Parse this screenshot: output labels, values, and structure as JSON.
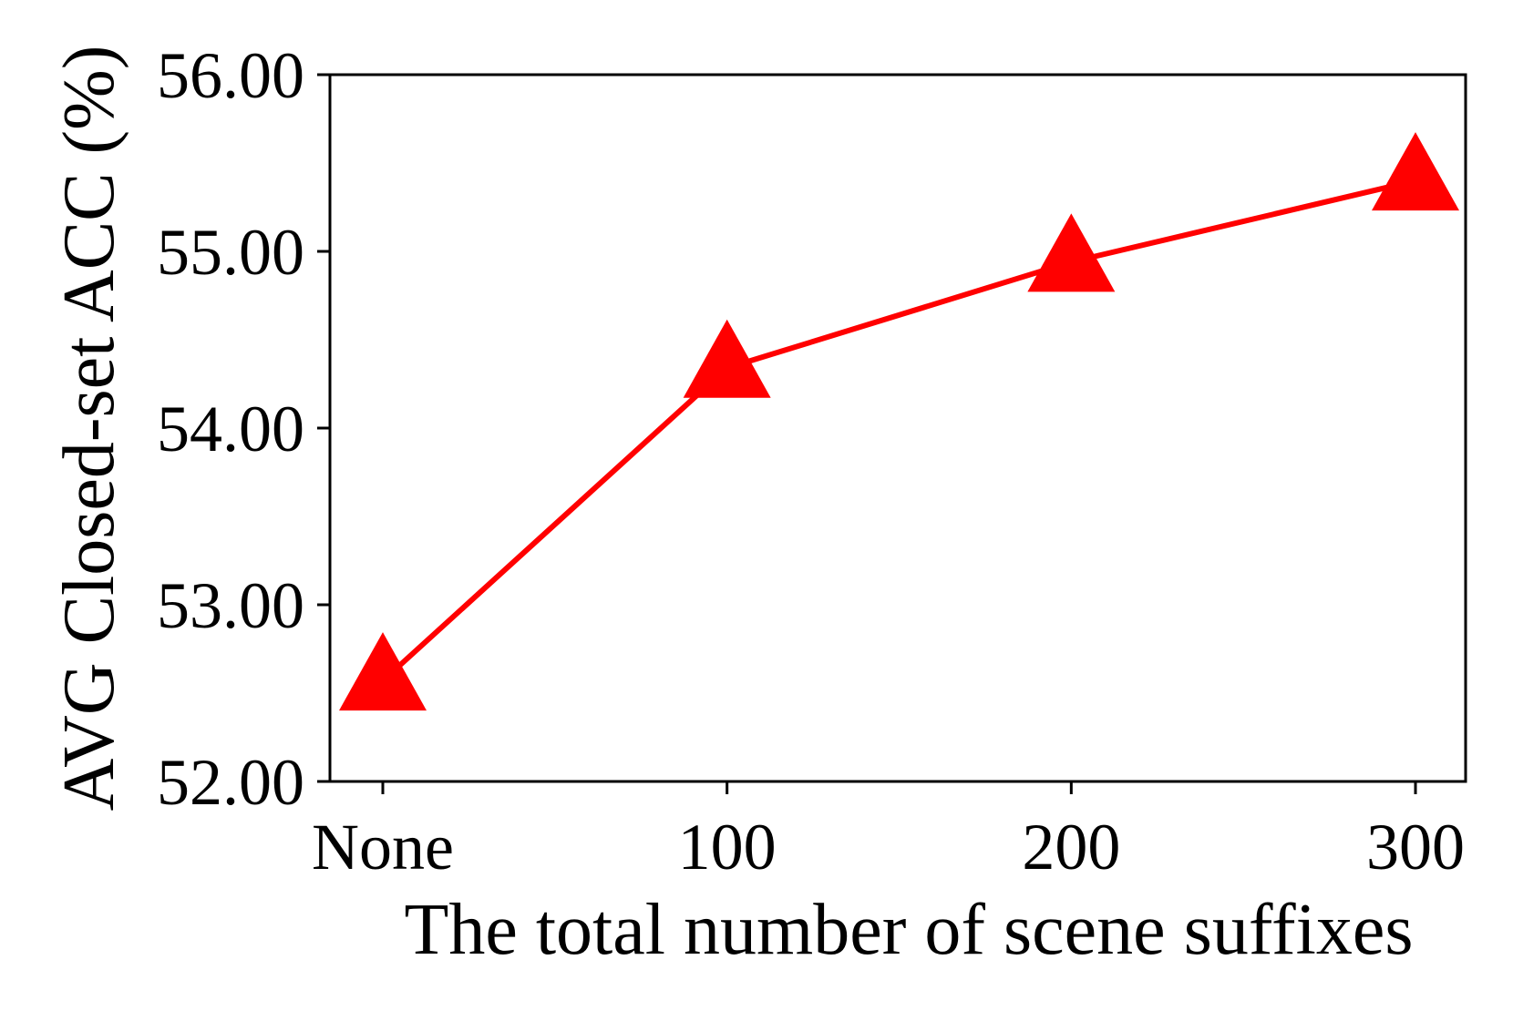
{
  "chart_data": {
    "type": "line",
    "title": "",
    "xlabel": "The total number of scene suffixes",
    "ylabel": "AVG Closed-set ACC (%)",
    "categories": [
      "None",
      "100",
      "200",
      "300"
    ],
    "series": [
      {
        "values": [
          52.57,
          54.34,
          54.94,
          55.4
        ]
      }
    ],
    "ylim": [
      52.0,
      56.0
    ],
    "yticks": [
      "52.00",
      "53.00",
      "54.00",
      "55.00",
      "56.00"
    ],
    "grid": false,
    "legend": "none",
    "line_color": "#ff0000",
    "marker": "triangle"
  }
}
